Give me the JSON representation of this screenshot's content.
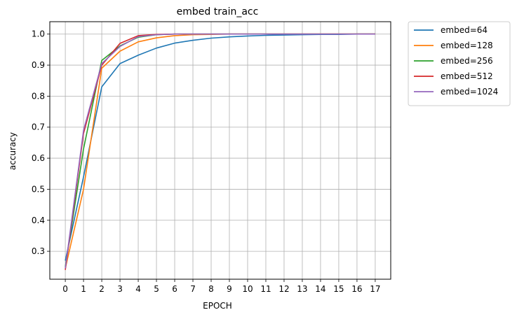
{
  "chart_data": {
    "type": "line",
    "title": "embed train_acc",
    "xlabel": "EPOCH",
    "ylabel": "accuracy",
    "x": [
      0,
      1,
      2,
      3,
      4,
      5,
      6,
      7,
      8,
      9,
      10,
      11,
      12,
      13,
      14,
      15,
      16,
      17
    ],
    "xlim": [
      -0.85,
      17.85
    ],
    "ylim": [
      0.21,
      1.04
    ],
    "yticks": [
      "0.3",
      "0.4",
      "0.5",
      "0.6",
      "0.7",
      "0.8",
      "0.9",
      "1.0"
    ],
    "grid": true,
    "legend_position": "outside-right",
    "series": [
      {
        "name": "embed=64",
        "color": "#1f77b4",
        "values": [
          0.27,
          0.54,
          0.83,
          0.905,
          0.932,
          0.955,
          0.971,
          0.98,
          0.987,
          0.991,
          0.994,
          0.996,
          0.997,
          0.998,
          0.999,
          0.999,
          1.0,
          1.0
        ]
      },
      {
        "name": "embed=128",
        "color": "#ff7f0e",
        "values": [
          0.245,
          0.5,
          0.89,
          0.945,
          0.975,
          0.988,
          0.995,
          0.998,
          0.999,
          1.0,
          1.0,
          1.0,
          1.0,
          1.0,
          1.0,
          1.0,
          1.0,
          1.0
        ]
      },
      {
        "name": "embed=256",
        "color": "#2ca02c",
        "values": [
          0.25,
          0.63,
          0.915,
          0.962,
          0.99,
          0.998,
          1.0,
          1.0,
          1.0,
          1.0,
          1.0,
          1.0,
          1.0,
          1.0,
          1.0,
          1.0,
          1.0,
          1.0
        ]
      },
      {
        "name": "embed=512",
        "color": "#d62728",
        "values": [
          0.24,
          0.68,
          0.9,
          0.97,
          0.995,
          0.999,
          1.0,
          1.0,
          1.0,
          1.0,
          1.0,
          1.0,
          1.0,
          1.0,
          1.0,
          1.0,
          1.0,
          1.0
        ]
      },
      {
        "name": "embed=1024",
        "color": "#9467bd",
        "values": [
          0.245,
          0.69,
          0.905,
          0.96,
          0.992,
          0.998,
          1.0,
          1.0,
          1.0,
          1.0,
          1.0,
          1.0,
          1.0,
          1.0,
          1.0,
          1.0,
          1.0,
          1.0
        ]
      }
    ]
  }
}
